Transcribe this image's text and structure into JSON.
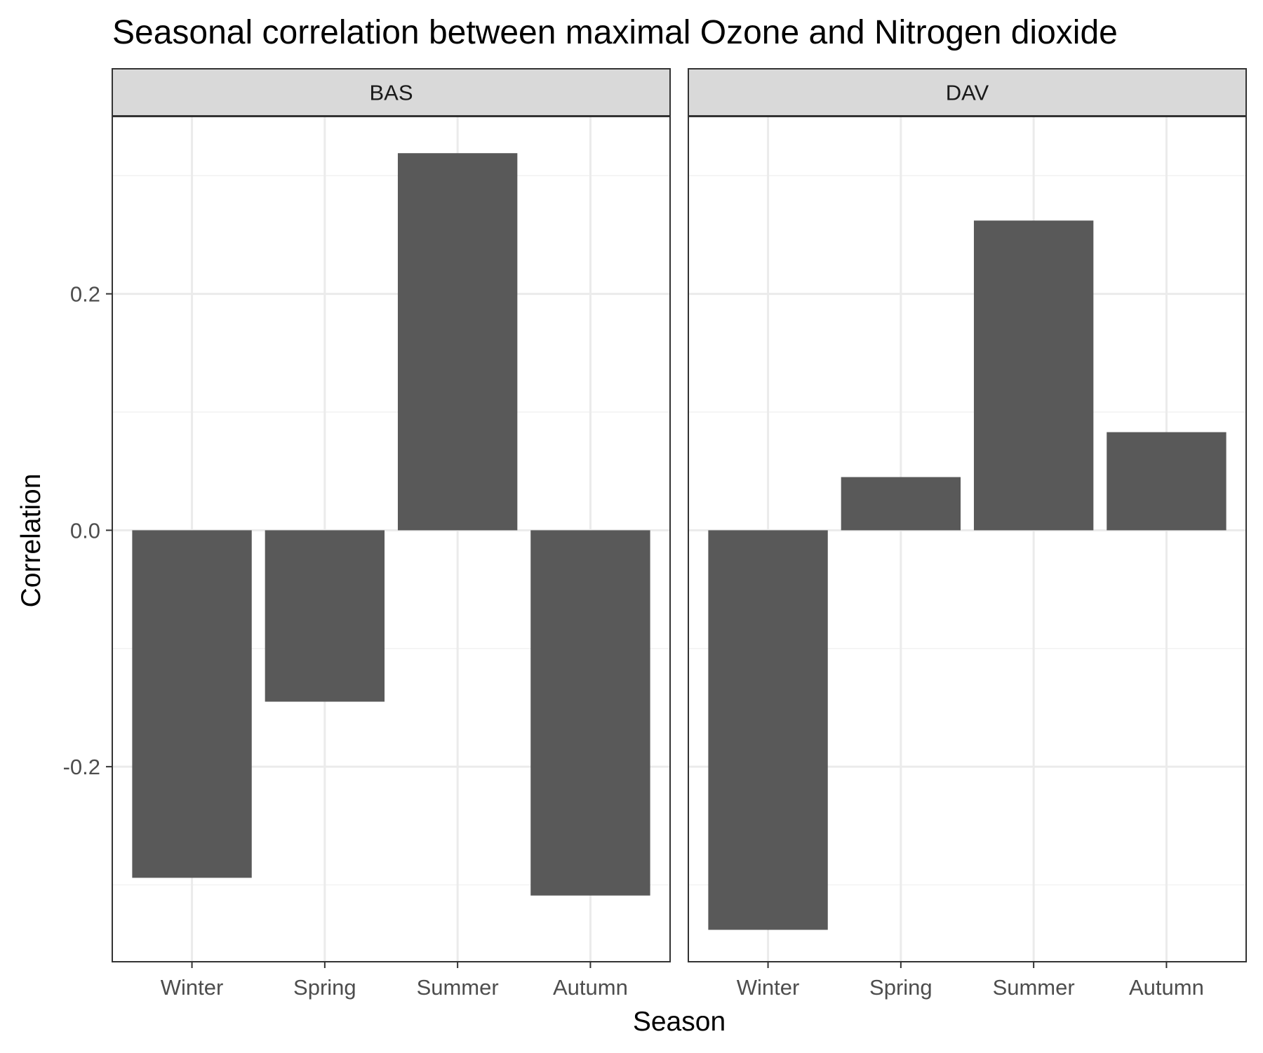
{
  "chart_data": {
    "type": "bar",
    "title": "Seasonal correlation between maximal Ozone and Nitrogen dioxide",
    "xlabel": "Season",
    "ylabel": "Correlation",
    "categories": [
      "Winter",
      "Spring",
      "Summer",
      "Autumn"
    ],
    "ylim": [
      -0.365,
      0.35
    ],
    "yticks": [
      -0.2,
      0.0,
      0.2
    ],
    "ytick_labels": [
      "-0.2",
      "0.0",
      "0.2"
    ],
    "grid": true,
    "facets": [
      {
        "name": "BAS",
        "values": [
          -0.294,
          -0.145,
          0.319,
          -0.309
        ]
      },
      {
        "name": "DAV",
        "values": [
          -0.338,
          0.045,
          0.262,
          0.083
        ]
      }
    ],
    "colors": {
      "bar": "#595959",
      "panel_border": "#333333",
      "strip_fill": "#d9d9d9",
      "grid_major": "#ebebeb",
      "grid_minor": "#f2f2f2"
    }
  }
}
